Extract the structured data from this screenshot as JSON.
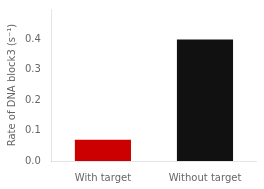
{
  "chart_data": {
    "type": "bar",
    "categories": [
      "With target",
      "Without target"
    ],
    "values": [
      0.07,
      0.4
    ],
    "colors": [
      "#cc0000",
      "#111111"
    ],
    "ylabel": "Rate of DNA block3 (s⁻¹)",
    "ylim": [
      0,
      0.5
    ],
    "yticks": [
      {
        "value": 0.0,
        "label": "0.0"
      },
      0.1,
      0.2,
      0.3,
      0.4
    ],
    "grid": false
  }
}
